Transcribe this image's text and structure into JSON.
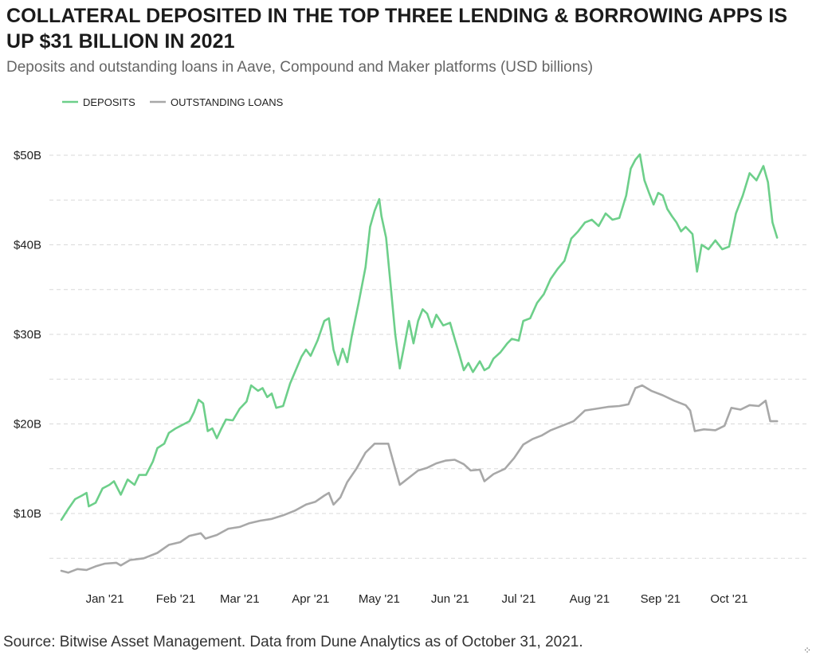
{
  "header": {
    "title": "COLLATERAL DEPOSITED IN THE TOP THREE LENDING & BORROWING APPS IS UP $31 BILLION IN 2021",
    "subtitle": "Deposits and outstanding loans in Aave, Compound and Maker platforms (USD billions)"
  },
  "footer": {
    "source": "Source: Bitwise Asset Management. Data from Dune Analytics as of October 31, 2021."
  },
  "colors": {
    "deposits": "#6dcf8a",
    "loans": "#a8a8a8",
    "grid": "#d9d9d9"
  },
  "chart_data": {
    "type": "line",
    "title": "COLLATERAL DEPOSITED IN THE TOP THREE LENDING & BORROWING APPS IS UP $31 BILLION IN 2021",
    "subtitle": "Deposits and outstanding loans in Aave, Compound and Maker platforms (USD billions)",
    "xlabel": "",
    "ylabel": "",
    "x_unit": "date",
    "xlim": [
      "2020-12-13",
      "2021-10-31"
    ],
    "ylim": [
      2,
      54
    ],
    "y_ticks": [
      10,
      20,
      30,
      40,
      50
    ],
    "y_tick_labels": [
      "$10B",
      "$20B",
      "$30B",
      "$40B",
      "$50B"
    ],
    "x_ticks": [
      "2021-01-01",
      "2021-02-01",
      "2021-03-01",
      "2021-04-01",
      "2021-05-01",
      "2021-06-01",
      "2021-07-01",
      "2021-08-01",
      "2021-09-01",
      "2021-10-01"
    ],
    "x_tick_labels": [
      "Jan '21",
      "Feb '21",
      "Mar '21",
      "Apr '21",
      "May '21",
      "Jun '21",
      "Jul '21",
      "Aug '21",
      "Sep '21",
      "Oct '21"
    ],
    "grid": "horizontal dashed",
    "legend": "top-left",
    "series": [
      {
        "name": "DEPOSITS",
        "color": "#6dcf8a",
        "points": [
          [
            "2020-12-13",
            9.3
          ],
          [
            "2020-12-16",
            10.5
          ],
          [
            "2020-12-19",
            11.6
          ],
          [
            "2020-12-22",
            12.0
          ],
          [
            "2020-12-24",
            12.3
          ],
          [
            "2020-12-25",
            10.8
          ],
          [
            "2020-12-28",
            11.2
          ],
          [
            "2020-12-31",
            12.8
          ],
          [
            "2021-01-03",
            13.2
          ],
          [
            "2021-01-05",
            13.6
          ],
          [
            "2021-01-08",
            12.1
          ],
          [
            "2021-01-11",
            13.8
          ],
          [
            "2021-01-14",
            13.2
          ],
          [
            "2021-01-16",
            14.3
          ],
          [
            "2021-01-19",
            14.3
          ],
          [
            "2021-01-22",
            15.8
          ],
          [
            "2021-01-24",
            17.3
          ],
          [
            "2021-01-27",
            17.8
          ],
          [
            "2021-01-29",
            19.0
          ],
          [
            "2021-02-01",
            19.5
          ],
          [
            "2021-02-04",
            19.9
          ],
          [
            "2021-02-07",
            20.3
          ],
          [
            "2021-02-09",
            21.3
          ],
          [
            "2021-02-11",
            22.7
          ],
          [
            "2021-02-13",
            22.3
          ],
          [
            "2021-02-15",
            19.2
          ],
          [
            "2021-02-17",
            19.5
          ],
          [
            "2021-02-19",
            18.4
          ],
          [
            "2021-02-21",
            19.5
          ],
          [
            "2021-02-23",
            20.5
          ],
          [
            "2021-02-26",
            20.4
          ],
          [
            "2021-03-01",
            21.7
          ],
          [
            "2021-03-04",
            22.5
          ],
          [
            "2021-03-06",
            24.3
          ],
          [
            "2021-03-09",
            23.7
          ],
          [
            "2021-03-11",
            24.0
          ],
          [
            "2021-03-13",
            23.0
          ],
          [
            "2021-03-15",
            23.4
          ],
          [
            "2021-03-17",
            21.8
          ],
          [
            "2021-03-20",
            22.0
          ],
          [
            "2021-03-23",
            24.5
          ],
          [
            "2021-03-25",
            25.7
          ],
          [
            "2021-03-28",
            27.5
          ],
          [
            "2021-03-30",
            28.3
          ],
          [
            "2021-04-01",
            27.6
          ],
          [
            "2021-04-04",
            29.3
          ],
          [
            "2021-04-07",
            31.5
          ],
          [
            "2021-04-09",
            31.8
          ],
          [
            "2021-04-11",
            28.3
          ],
          [
            "2021-04-13",
            26.6
          ],
          [
            "2021-04-15",
            28.4
          ],
          [
            "2021-04-17",
            26.9
          ],
          [
            "2021-04-19",
            29.8
          ],
          [
            "2021-04-22",
            33.5
          ],
          [
            "2021-04-25",
            37.5
          ],
          [
            "2021-04-27",
            42.0
          ],
          [
            "2021-04-29",
            43.8
          ],
          [
            "2021-05-01",
            45.1
          ],
          [
            "2021-05-02",
            43.2
          ],
          [
            "2021-05-04",
            40.8
          ],
          [
            "2021-05-06",
            35.5
          ],
          [
            "2021-05-08",
            30.0
          ],
          [
            "2021-05-10",
            26.2
          ],
          [
            "2021-05-12",
            28.8
          ],
          [
            "2021-05-14",
            31.5
          ],
          [
            "2021-05-16",
            29.0
          ],
          [
            "2021-05-18",
            31.5
          ],
          [
            "2021-05-20",
            32.8
          ],
          [
            "2021-05-22",
            32.3
          ],
          [
            "2021-05-24",
            30.8
          ],
          [
            "2021-05-26",
            32.2
          ],
          [
            "2021-05-29",
            31.0
          ],
          [
            "2021-06-01",
            31.3
          ],
          [
            "2021-06-03",
            29.5
          ],
          [
            "2021-06-05",
            27.8
          ],
          [
            "2021-06-07",
            26.0
          ],
          [
            "2021-06-09",
            26.8
          ],
          [
            "2021-06-11",
            25.8
          ],
          [
            "2021-06-14",
            27.0
          ],
          [
            "2021-06-16",
            26.0
          ],
          [
            "2021-06-18",
            26.3
          ],
          [
            "2021-06-20",
            27.3
          ],
          [
            "2021-06-23",
            28.0
          ],
          [
            "2021-06-26",
            29.0
          ],
          [
            "2021-06-28",
            29.5
          ],
          [
            "2021-07-01",
            29.3
          ],
          [
            "2021-07-03",
            31.5
          ],
          [
            "2021-07-06",
            31.8
          ],
          [
            "2021-07-09",
            33.5
          ],
          [
            "2021-07-12",
            34.5
          ],
          [
            "2021-07-15",
            36.2
          ],
          [
            "2021-07-18",
            37.3
          ],
          [
            "2021-07-21",
            38.2
          ],
          [
            "2021-07-24",
            40.7
          ],
          [
            "2021-07-27",
            41.5
          ],
          [
            "2021-07-30",
            42.5
          ],
          [
            "2021-08-02",
            42.8
          ],
          [
            "2021-08-05",
            42.1
          ],
          [
            "2021-08-08",
            43.5
          ],
          [
            "2021-08-11",
            42.8
          ],
          [
            "2021-08-14",
            43.0
          ],
          [
            "2021-08-17",
            45.5
          ],
          [
            "2021-08-19",
            48.5
          ],
          [
            "2021-08-21",
            49.5
          ],
          [
            "2021-08-23",
            50.1
          ],
          [
            "2021-08-25",
            47.2
          ],
          [
            "2021-08-27",
            45.8
          ],
          [
            "2021-08-29",
            44.5
          ],
          [
            "2021-08-31",
            45.8
          ],
          [
            "2021-09-02",
            45.5
          ],
          [
            "2021-09-04",
            44.0
          ],
          [
            "2021-09-06",
            43.2
          ],
          [
            "2021-09-08",
            42.5
          ],
          [
            "2021-09-10",
            41.5
          ],
          [
            "2021-09-12",
            42.0
          ],
          [
            "2021-09-15",
            41.2
          ],
          [
            "2021-09-17",
            37.0
          ],
          [
            "2021-09-19",
            40.0
          ],
          [
            "2021-09-22",
            39.5
          ],
          [
            "2021-09-25",
            40.5
          ],
          [
            "2021-09-28",
            39.5
          ],
          [
            "2021-10-01",
            39.8
          ],
          [
            "2021-10-04",
            43.5
          ],
          [
            "2021-10-07",
            45.5
          ],
          [
            "2021-10-10",
            48.0
          ],
          [
            "2021-10-13",
            47.2
          ],
          [
            "2021-10-16",
            48.8
          ],
          [
            "2021-10-18",
            47.0
          ],
          [
            "2021-10-20",
            42.5
          ],
          [
            "2021-10-22",
            40.8
          ]
        ]
      },
      {
        "name": "OUTSTANDING LOANS",
        "color": "#a8a8a8",
        "points": [
          [
            "2020-12-13",
            3.6
          ],
          [
            "2020-12-16",
            3.4
          ],
          [
            "2020-12-20",
            3.8
          ],
          [
            "2020-12-24",
            3.7
          ],
          [
            "2020-12-28",
            4.1
          ],
          [
            "2021-01-01",
            4.4
          ],
          [
            "2021-01-06",
            4.5
          ],
          [
            "2021-01-08",
            4.2
          ],
          [
            "2021-01-12",
            4.8
          ],
          [
            "2021-01-18",
            5.0
          ],
          [
            "2021-01-24",
            5.6
          ],
          [
            "2021-01-29",
            6.5
          ],
          [
            "2021-02-03",
            6.8
          ],
          [
            "2021-02-07",
            7.5
          ],
          [
            "2021-02-12",
            7.8
          ],
          [
            "2021-02-14",
            7.2
          ],
          [
            "2021-02-19",
            7.6
          ],
          [
            "2021-02-24",
            8.3
          ],
          [
            "2021-03-01",
            8.5
          ],
          [
            "2021-03-05",
            8.9
          ],
          [
            "2021-03-10",
            9.2
          ],
          [
            "2021-03-15",
            9.4
          ],
          [
            "2021-03-20",
            9.8
          ],
          [
            "2021-03-25",
            10.3
          ],
          [
            "2021-03-30",
            11.0
          ],
          [
            "2021-04-03",
            11.3
          ],
          [
            "2021-04-07",
            12.0
          ],
          [
            "2021-04-09",
            12.3
          ],
          [
            "2021-04-11",
            11.0
          ],
          [
            "2021-04-14",
            11.8
          ],
          [
            "2021-04-17",
            13.5
          ],
          [
            "2021-04-21",
            15.0
          ],
          [
            "2021-04-25",
            16.8
          ],
          [
            "2021-04-29",
            17.8
          ],
          [
            "2021-05-02",
            17.8
          ],
          [
            "2021-05-05",
            17.8
          ],
          [
            "2021-05-08",
            15.0
          ],
          [
            "2021-05-10",
            13.2
          ],
          [
            "2021-05-14",
            14.0
          ],
          [
            "2021-05-18",
            14.8
          ],
          [
            "2021-05-22",
            15.1
          ],
          [
            "2021-05-26",
            15.6
          ],
          [
            "2021-05-30",
            15.9
          ],
          [
            "2021-06-03",
            16.0
          ],
          [
            "2021-06-07",
            15.5
          ],
          [
            "2021-06-10",
            14.8
          ],
          [
            "2021-06-14",
            14.9
          ],
          [
            "2021-06-16",
            13.6
          ],
          [
            "2021-06-20",
            14.4
          ],
          [
            "2021-06-25",
            15.0
          ],
          [
            "2021-06-29",
            16.2
          ],
          [
            "2021-07-03",
            17.7
          ],
          [
            "2021-07-07",
            18.3
          ],
          [
            "2021-07-11",
            18.7
          ],
          [
            "2021-07-15",
            19.3
          ],
          [
            "2021-07-20",
            19.8
          ],
          [
            "2021-07-25",
            20.3
          ],
          [
            "2021-07-30",
            21.5
          ],
          [
            "2021-08-04",
            21.7
          ],
          [
            "2021-08-09",
            21.9
          ],
          [
            "2021-08-14",
            22.0
          ],
          [
            "2021-08-18",
            22.2
          ],
          [
            "2021-08-21",
            24.0
          ],
          [
            "2021-08-24",
            24.3
          ],
          [
            "2021-08-28",
            23.7
          ],
          [
            "2021-09-02",
            23.2
          ],
          [
            "2021-09-07",
            22.6
          ],
          [
            "2021-09-12",
            22.1
          ],
          [
            "2021-09-14",
            21.5
          ],
          [
            "2021-09-16",
            19.2
          ],
          [
            "2021-09-20",
            19.4
          ],
          [
            "2021-09-25",
            19.3
          ],
          [
            "2021-09-29",
            19.8
          ],
          [
            "2021-10-02",
            21.8
          ],
          [
            "2021-10-06",
            21.6
          ],
          [
            "2021-10-10",
            22.1
          ],
          [
            "2021-10-14",
            22.0
          ],
          [
            "2021-10-17",
            22.6
          ],
          [
            "2021-10-19",
            20.3
          ],
          [
            "2021-10-22",
            20.3
          ]
        ]
      }
    ]
  }
}
